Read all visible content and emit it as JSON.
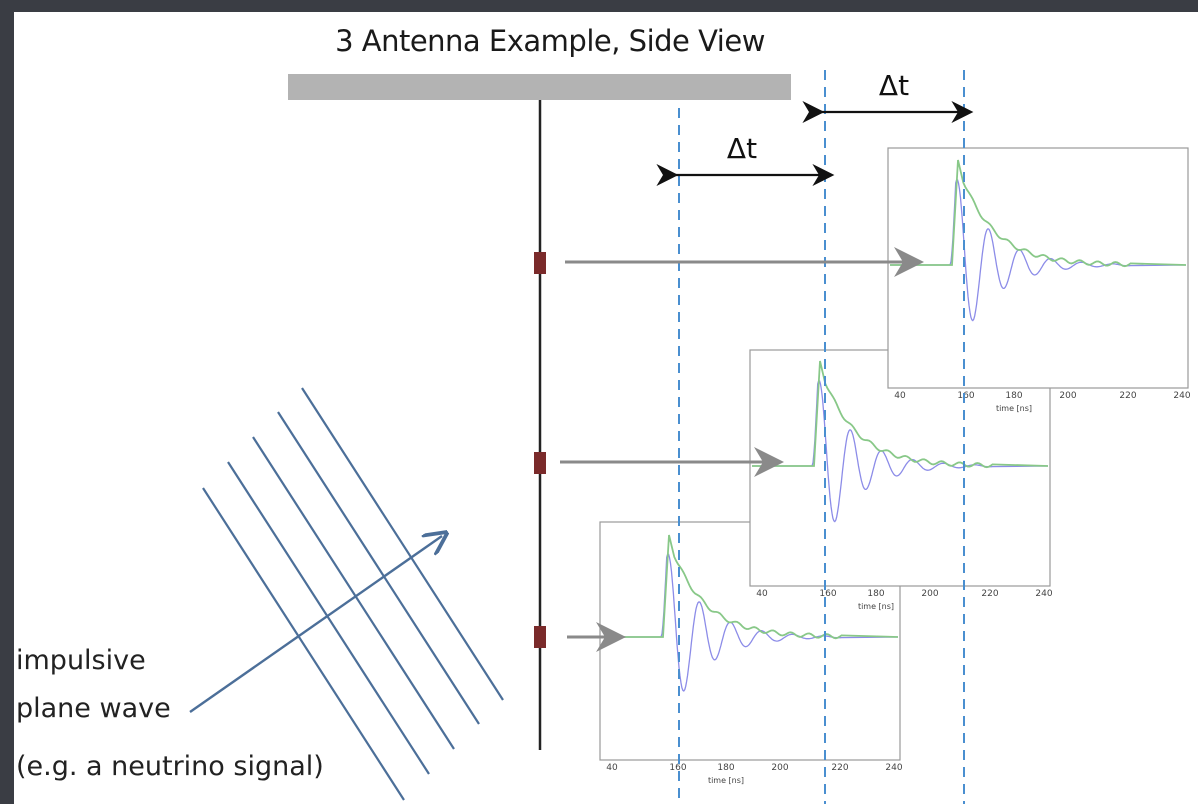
{
  "title": "3 Antenna Example, Side View",
  "delta_label": "Δt",
  "wave_label": {
    "line1": "impulsive",
    "line2": "plane wave",
    "line3": "(e.g. a neutrino signal)"
  },
  "plots": [
    {
      "id": "top",
      "ticks": [
        "40",
        "160",
        "180",
        "200",
        "220",
        "240"
      ],
      "xlabel": "time [ns]"
    },
    {
      "id": "middle",
      "ticks": [
        "40",
        "160",
        "180",
        "200",
        "220",
        "240"
      ],
      "xlabel": "time [ns]"
    },
    {
      "id": "bottom",
      "ticks": [
        "40",
        "160",
        "180",
        "200",
        "220",
        "240"
      ],
      "xlabel": "time [ns]"
    }
  ],
  "colors": {
    "background": "#3a3d44",
    "ground": "#b3b3b3",
    "string": "#222222",
    "antenna": "#7a2a2a",
    "arrow": "#8a8a8a",
    "dashed": "#4a8fd0",
    "wavefront": "#4c6f99",
    "signal": "#8c8ce8",
    "envelope": "#88c888"
  }
}
